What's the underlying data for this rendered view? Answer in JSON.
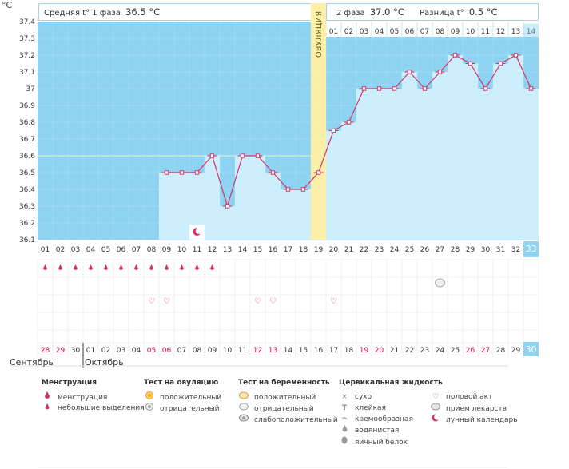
{
  "unit": "°C",
  "header": {
    "phase1_label": "Средняя t° 1 фаза",
    "phase1_value": "36.5 °С",
    "phase2_label": "2 фаза",
    "phase2_value": "37.0 °С",
    "diff_label": "Разница t°",
    "diff_value": "0.5 °С"
  },
  "ovulation_label": "ОВУЛЯЦИЯ",
  "month_prev": "Сентябрь",
  "month_cur": "Октябрь",
  "colors": {
    "phase_bg": "#8fd3f2",
    "bar": "#cdeefd",
    "line": "#d23468",
    "ovulation": "#fdf0a8",
    "highlight": "#8fd3f2",
    "red_text": "#cc1144"
  },
  "chart_data": {
    "type": "line",
    "title": "",
    "ylabel": "°C",
    "ylim": [
      36.1,
      37.4
    ],
    "yticks": [
      "37.4",
      "37.3",
      "37.2",
      "37.1",
      "37",
      "36.9",
      "36.8",
      "36.7",
      "36.6",
      "36.5",
      "36.4",
      "36.3",
      "36.2",
      "36.1"
    ],
    "cycle_days": [
      "01",
      "02",
      "03",
      "04",
      "05",
      "06",
      "07",
      "08",
      "09",
      "10",
      "11",
      "12",
      "13",
      "14",
      "15",
      "16",
      "17",
      "18",
      "19",
      "20",
      "21",
      "22",
      "23",
      "24",
      "25",
      "26",
      "27",
      "28",
      "29",
      "30",
      "31",
      "32",
      "33"
    ],
    "phase2_days": [
      "01",
      "02",
      "03",
      "04",
      "05",
      "06",
      "07",
      "08",
      "09",
      "10",
      "11",
      "12",
      "13",
      "14"
    ],
    "calendar_dates": [
      "28",
      "29",
      "30",
      "01",
      "02",
      "03",
      "04",
      "05",
      "06",
      "07",
      "08",
      "09",
      "10",
      "11",
      "12",
      "13",
      "14",
      "15",
      "16",
      "17",
      "18",
      "19",
      "20",
      "21",
      "22",
      "23",
      "24",
      "25",
      "26",
      "27",
      "28",
      "29",
      "30"
    ],
    "red_dates_idx": [
      0,
      1,
      7,
      8,
      14,
      15,
      21,
      22,
      28,
      29
    ],
    "temperatures": [
      null,
      null,
      null,
      null,
      null,
      null,
      null,
      null,
      36.5,
      36.5,
      36.5,
      36.6,
      36.3,
      36.6,
      36.6,
      36.5,
      36.4,
      36.4,
      36.5,
      36.75,
      36.8,
      37.0,
      37.0,
      37.0,
      37.1,
      37.0,
      37.1,
      37.2,
      37.15,
      37.0,
      37.15,
      37.2,
      37.0
    ],
    "ovulation_day": "19",
    "coverline": 36.6,
    "today_index": 32
  },
  "markers": {
    "menstruation_days": [
      "01",
      "02",
      "03",
      "04",
      "05",
      "06",
      "07",
      "08",
      "09",
      "10",
      "11",
      "12"
    ],
    "moon_day": "11",
    "intercourse_days": [
      "08",
      "09",
      "15",
      "16",
      "20"
    ],
    "medicine_day": "27"
  },
  "legend": {
    "menstruation": {
      "title": "Менструация",
      "items": [
        "менструация",
        "небольшие выделения"
      ]
    },
    "ovulation_test": {
      "title": "Тест на овуляцию",
      "items": [
        "положительный",
        "отрицательный"
      ]
    },
    "pregnancy_test": {
      "title": "Тест на беременность",
      "items": [
        "положительный",
        "отрицательный",
        "слабоположительный"
      ]
    },
    "cervical": {
      "title": "Цервикальная жидкость",
      "items": [
        "сухо",
        "клейкая",
        "кремообразная",
        "водянистая",
        "яичный белок"
      ]
    },
    "other": {
      "items": [
        "половой акт",
        "прием лекарств",
        "лунный календарь"
      ]
    }
  }
}
